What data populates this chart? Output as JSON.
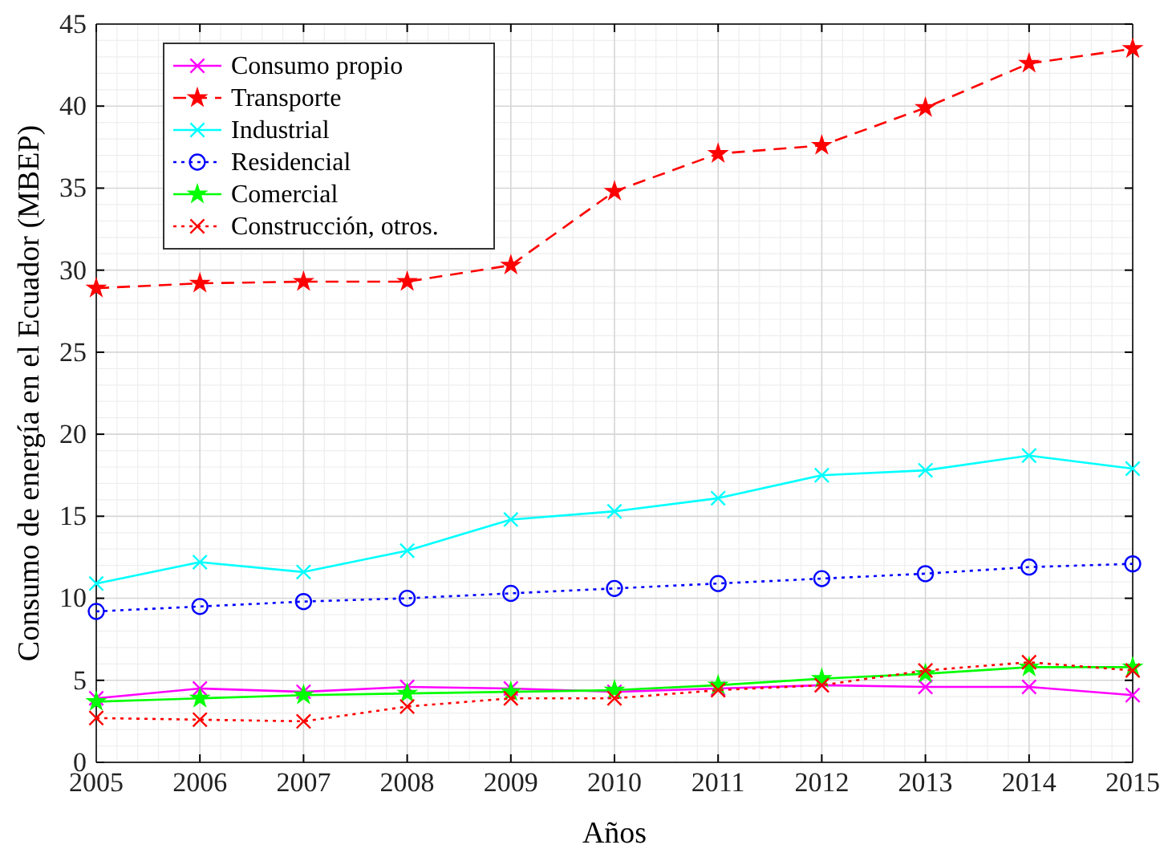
{
  "chart_data": {
    "type": "line",
    "xlabel": "Años",
    "ylabel": "Consumo de energía en el Ecuador (MBEP)",
    "x": [
      2005,
      2006,
      2007,
      2008,
      2009,
      2010,
      2011,
      2012,
      2013,
      2014,
      2015
    ],
    "xlim": [
      2005,
      2015
    ],
    "xticks": [
      2005,
      2006,
      2007,
      2008,
      2009,
      2010,
      2011,
      2012,
      2013,
      2014,
      2015
    ],
    "ylim": [
      0,
      45
    ],
    "yticks": [
      0,
      5,
      10,
      15,
      20,
      25,
      30,
      35,
      40,
      45
    ],
    "grid": true,
    "legend": "top left",
    "series": [
      {
        "name": "Consumo propio",
        "color": "#ff00ff",
        "marker": "cross",
        "line_style": "solid",
        "values": [
          3.9,
          4.5,
          4.3,
          4.6,
          4.5,
          4.3,
          4.5,
          4.7,
          4.6,
          4.6,
          4.1
        ]
      },
      {
        "name": "Transporte",
        "color": "#ff0000",
        "marker": "star",
        "line_style": "dashed",
        "values": [
          28.9,
          29.2,
          29.3,
          29.3,
          30.3,
          34.8,
          37.1,
          37.6,
          39.9,
          42.6,
          43.5
        ]
      },
      {
        "name": "Industrial",
        "color": "#00ffff",
        "marker": "cross",
        "line_style": "solid",
        "values": [
          10.9,
          12.2,
          11.6,
          12.9,
          14.8,
          15.3,
          16.1,
          17.5,
          17.8,
          18.7,
          17.9
        ]
      },
      {
        "name": "Residencial",
        "color": "#0000ff",
        "marker": "circle",
        "line_style": "dotted",
        "values": [
          9.2,
          9.5,
          9.8,
          10.0,
          10.3,
          10.6,
          10.9,
          11.2,
          11.5,
          11.9,
          12.1
        ]
      },
      {
        "name": "Comercial",
        "color": "#00ff00",
        "marker": "star",
        "line_style": "solid",
        "values": [
          3.7,
          3.9,
          4.1,
          4.2,
          4.3,
          4.4,
          4.7,
          5.1,
          5.4,
          5.8,
          5.8
        ]
      },
      {
        "name": "Construcción, otros.",
        "color": "#ff0000",
        "marker": "cross",
        "line_style": "dotted",
        "values": [
          2.7,
          2.6,
          2.5,
          3.4,
          3.9,
          3.9,
          4.4,
          4.7,
          5.6,
          6.1,
          5.6
        ]
      }
    ]
  }
}
